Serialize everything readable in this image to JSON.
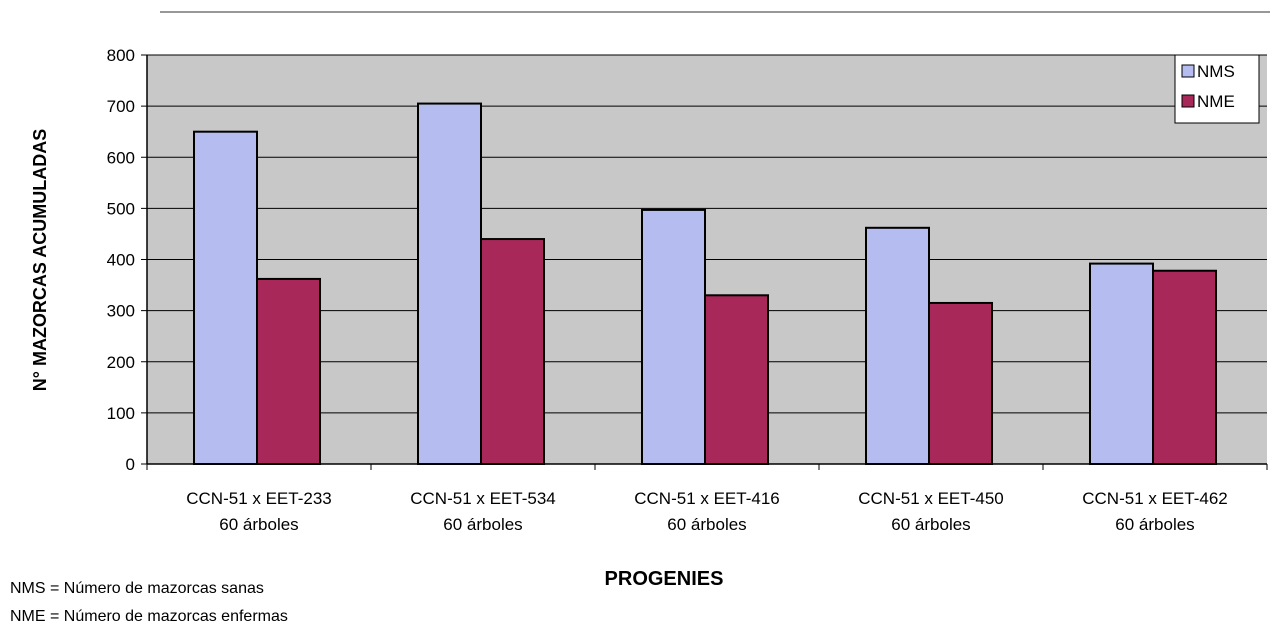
{
  "chart_data": {
    "type": "bar",
    "title": "",
    "xlabel": "PROGENIES",
    "ylabel": "N° MAZORCAS ACUMULADAS",
    "ylim": [
      0,
      800
    ],
    "yticks": [
      "0",
      "100",
      "200",
      "300",
      "400",
      "500",
      "600",
      "700",
      "800"
    ],
    "categories": [
      [
        "CCN-51 x EET-233",
        "60 árboles"
      ],
      [
        "CCN-51 x EET-534",
        "60 árboles"
      ],
      [
        "CCN-51 x EET-416",
        "60 árboles"
      ],
      [
        "CCN-51 x EET-450",
        "60 árboles"
      ],
      [
        "CCN-51 x EET-462",
        "60 árboles"
      ]
    ],
    "series": [
      {
        "name": "NMS",
        "values": [
          650,
          705,
          497,
          462,
          392
        ]
      },
      {
        "name": "NME",
        "values": [
          362,
          440,
          330,
          315,
          378
        ]
      }
    ],
    "grid": true,
    "legend_position": "top-right"
  },
  "colors": {
    "NMS": "#b4bcf0",
    "NME": "#a8285a",
    "plot_bg": "#c8c8c8",
    "grid": "#000000"
  },
  "footnotes": [
    "NMS = Número de mazorcas sanas",
    "NME = Número de mazorcas enfermas"
  ]
}
